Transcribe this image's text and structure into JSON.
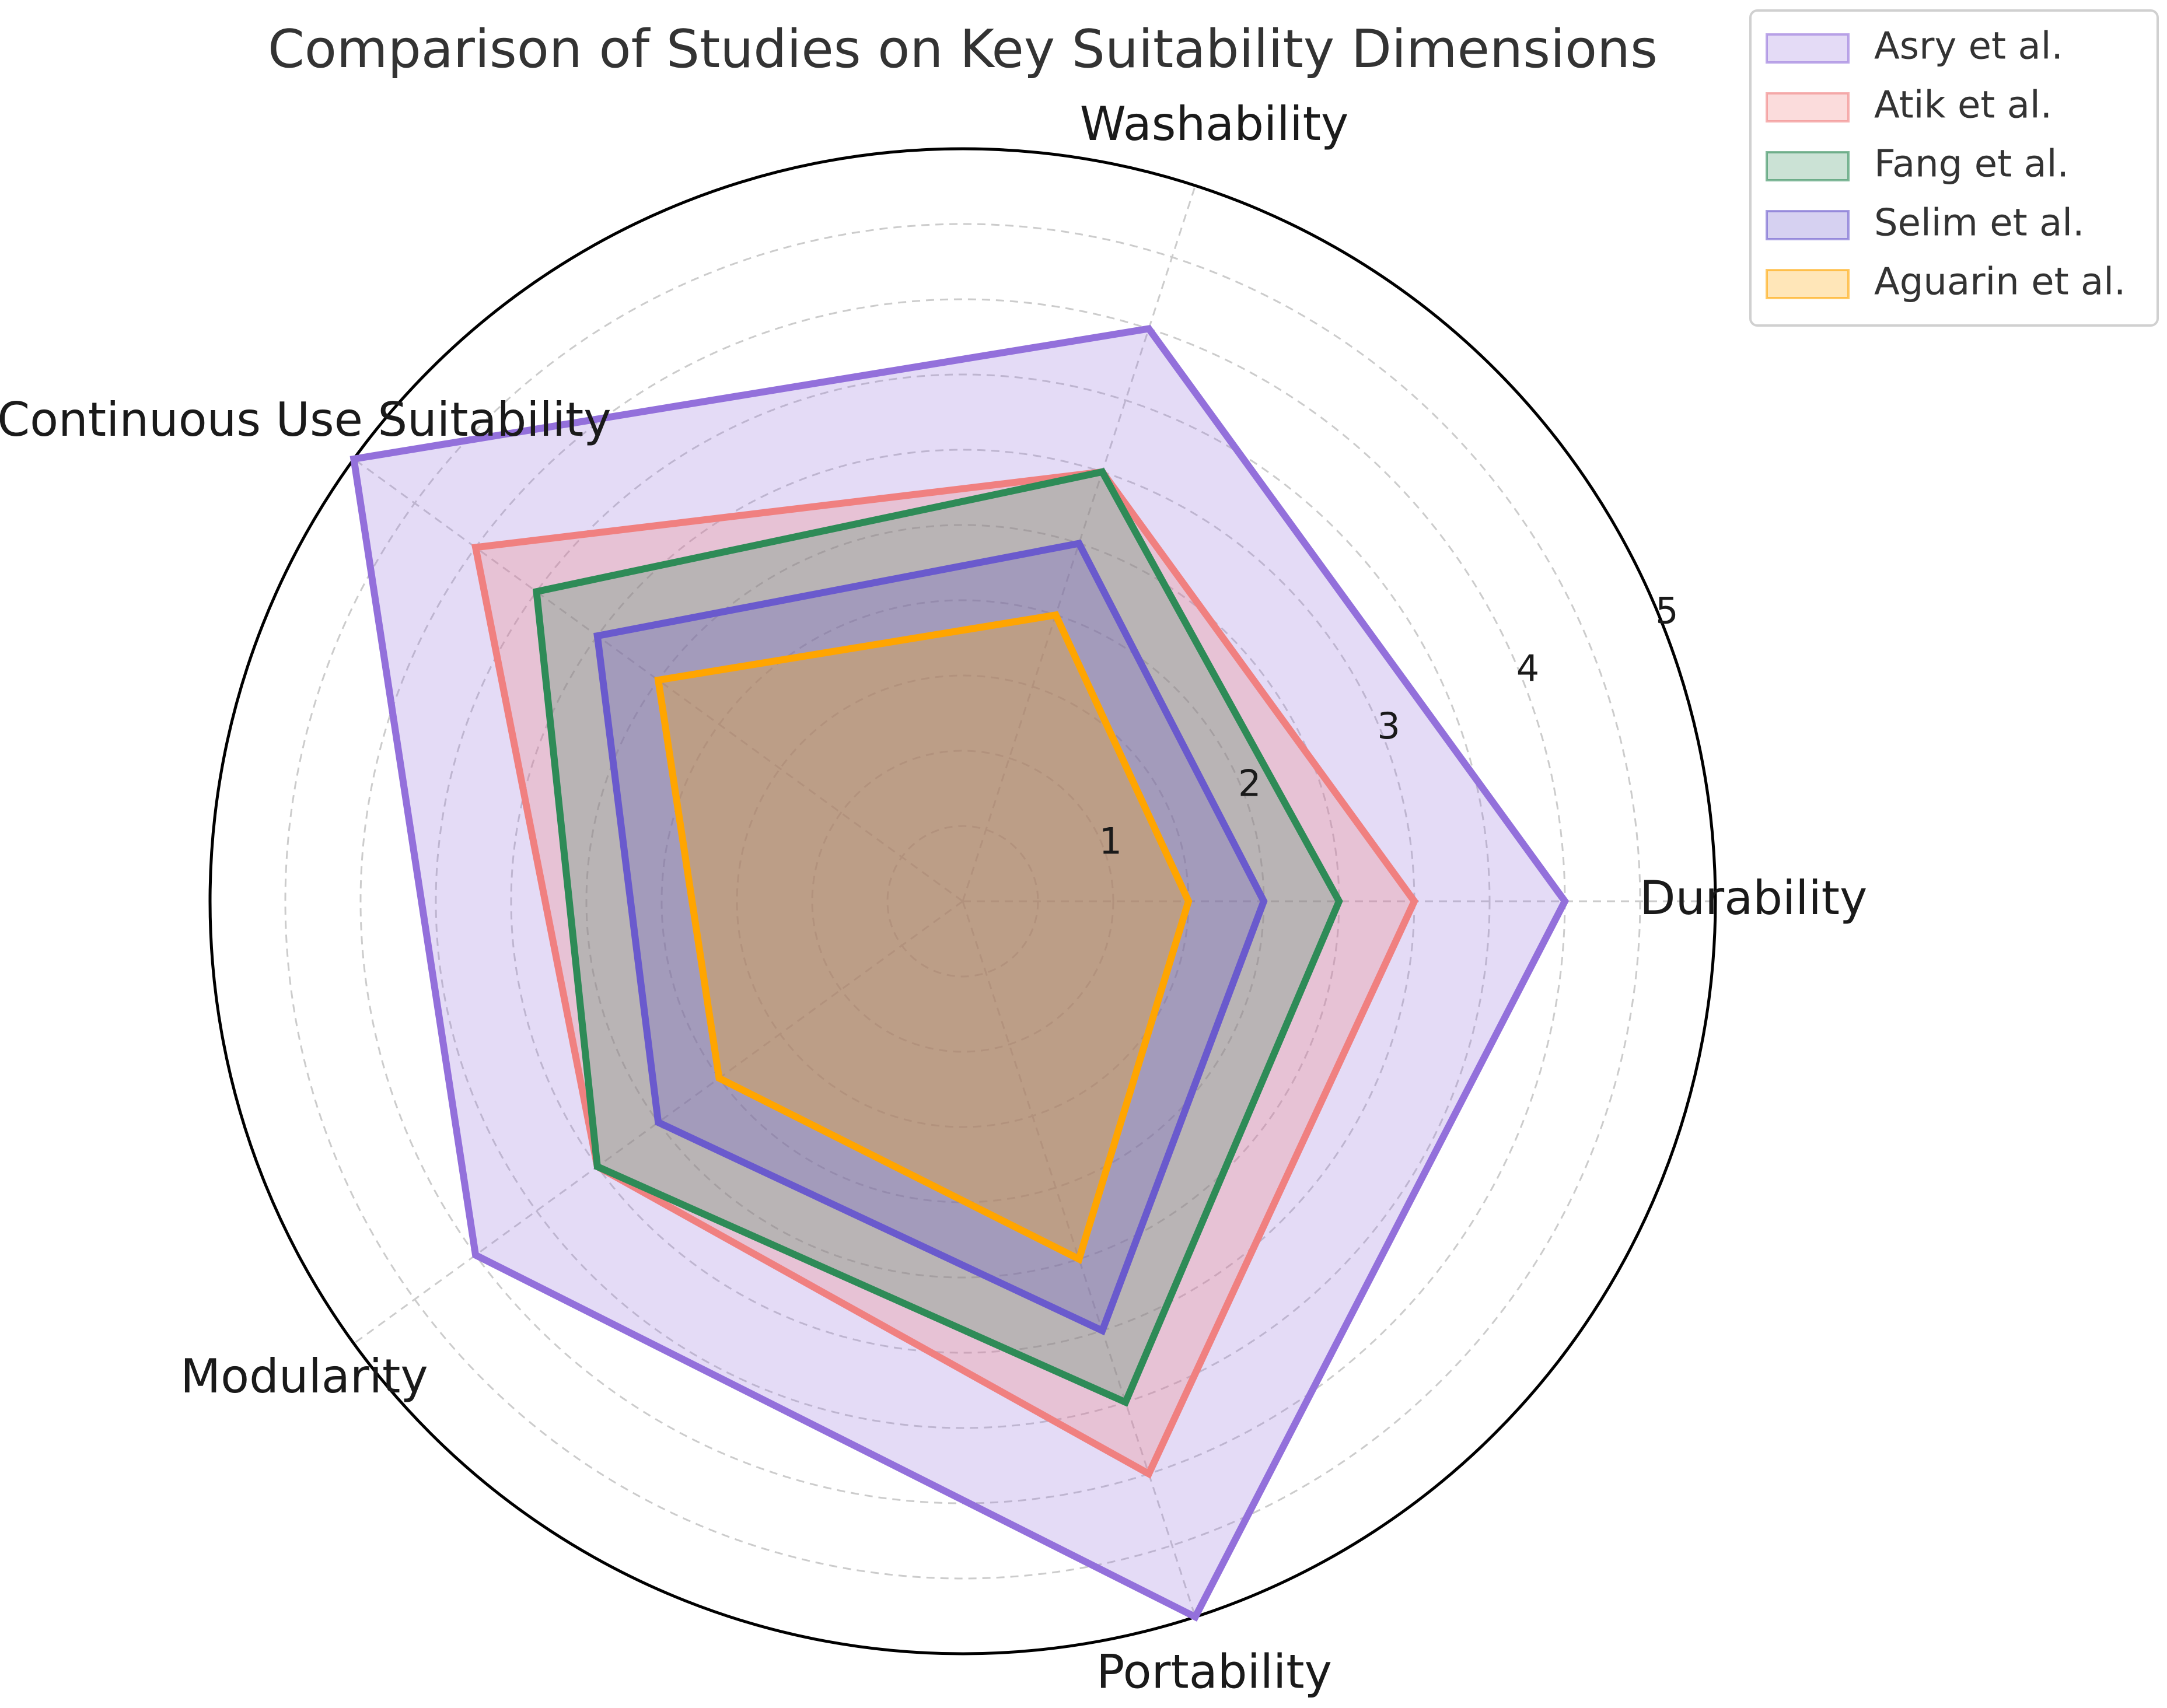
{
  "chart_data": {
    "type": "radar",
    "title": "Comparison of Studies on Key Suitability Dimensions",
    "axes": [
      "Durability",
      "Washability",
      "Continuous Use Suitability",
      "Modularity",
      "Portability"
    ],
    "rlim": [
      0,
      5
    ],
    "rticks": [
      1,
      2,
      3,
      4,
      5
    ],
    "grid": true,
    "legend_position": "top-right",
    "series": [
      {
        "name": "Asry et al.",
        "values": [
          4,
          4,
          5,
          4,
          5
        ],
        "color": "#9370DB",
        "fill_opacity": 0.25
      },
      {
        "name": "Atik et al.",
        "values": [
          3,
          3,
          4,
          3,
          4
        ],
        "color": "#F08080",
        "fill_opacity": 0.28
      },
      {
        "name": "Fang et al.",
        "values": [
          2.5,
          3,
          3.5,
          3,
          3.5
        ],
        "color": "#2E8B57",
        "fill_opacity": 0.25
      },
      {
        "name": "Selim et al.",
        "values": [
          2,
          2.5,
          3,
          2.5,
          3
        ],
        "color": "#6A5ACD",
        "fill_opacity": 0.28
      },
      {
        "name": "Aguarin et al.",
        "values": [
          1.5,
          2,
          2.5,
          2,
          2.5
        ],
        "color": "#FFA500",
        "fill_opacity": 0.28
      }
    ]
  }
}
